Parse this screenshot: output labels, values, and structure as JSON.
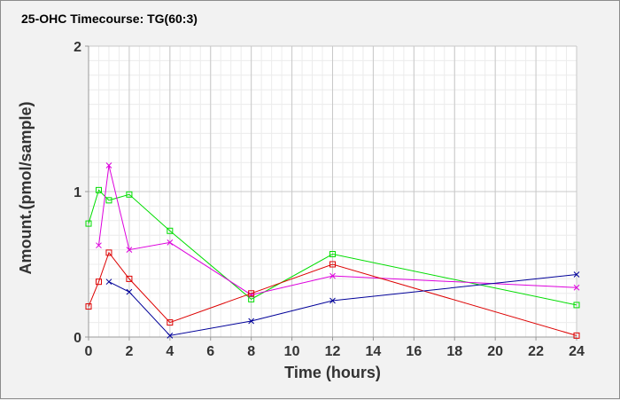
{
  "chart_data": {
    "type": "line",
    "title": "25-OHC Timecourse: TG(60:3)",
    "xlabel": "Time (hours)",
    "ylabel": "Amount.(pmol/sample)",
    "xlim": [
      0,
      24
    ],
    "ylim": [
      0,
      2
    ],
    "xticks": [
      0,
      2,
      4,
      6,
      8,
      10,
      12,
      14,
      16,
      18,
      20,
      22,
      24
    ],
    "yticks": [
      0,
      1,
      2
    ],
    "grid": true,
    "legend": "none",
    "series": [
      {
        "color": "#00dd00",
        "marker": "square",
        "x": [
          0,
          0.5,
          1,
          2,
          4,
          8,
          12,
          24
        ],
        "y": [
          0.78,
          1.01,
          0.94,
          0.98,
          0.73,
          0.26,
          0.57,
          0.22
        ]
      },
      {
        "color": "#dd00dd",
        "marker": "x",
        "x": [
          0.5,
          1,
          2,
          4,
          8,
          12,
          24
        ],
        "y": [
          0.63,
          1.18,
          0.6,
          0.65,
          0.29,
          0.42,
          0.34
        ]
      },
      {
        "color": "#dd0000",
        "marker": "square",
        "x": [
          0,
          0.5,
          1,
          2,
          4,
          8,
          12,
          24
        ],
        "y": [
          0.21,
          0.38,
          0.58,
          0.4,
          0.1,
          0.3,
          0.5,
          0.01
        ]
      },
      {
        "color": "#000099",
        "marker": "x",
        "x": [
          1,
          2,
          4,
          8,
          12,
          24
        ],
        "y": [
          0.38,
          0.31,
          0.01,
          0.11,
          0.25,
          0.43
        ]
      }
    ]
  }
}
